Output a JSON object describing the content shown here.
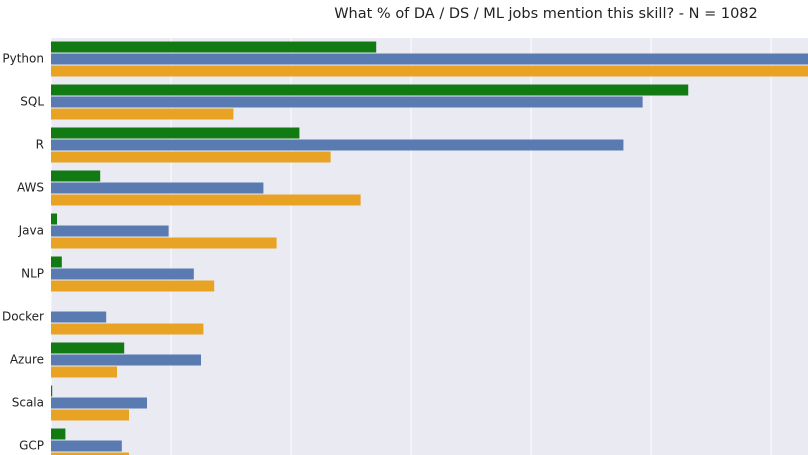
{
  "chart_data": {
    "type": "bar",
    "orientation": "horizontal",
    "title": "What % of DA / DS / ML jobs mention this skill? - N = 1082",
    "categories": [
      "Python",
      "SQL",
      "R",
      "AWS",
      "Java",
      "NLP",
      "Docker",
      "Azure",
      "Scala",
      "GCP"
    ],
    "series": [
      {
        "color": "#127a12",
        "values": [
          27.1,
          53.1,
          20.7,
          4.1,
          0.5,
          0.9,
          0,
          6.1,
          0.1,
          1.2
        ]
      },
      {
        "color": "#5a7bb2",
        "values": [
          65,
          49.3,
          47.7,
          17.7,
          9.8,
          11.9,
          4.6,
          12.5,
          8,
          5.9
        ]
      },
      {
        "color": "#e8a224",
        "values": [
          65,
          15.2,
          23.3,
          25.8,
          18.8,
          13.6,
          12.7,
          5.5,
          6.5,
          6.5
        ]
      }
    ],
    "xlim": [
      0,
      63.08
    ],
    "xticks": [
      0,
      10,
      20,
      30,
      40,
      50,
      60
    ],
    "grid": true
  }
}
